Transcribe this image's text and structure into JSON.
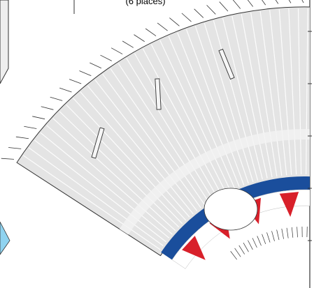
{
  "annotation": "(6 places)"
}
